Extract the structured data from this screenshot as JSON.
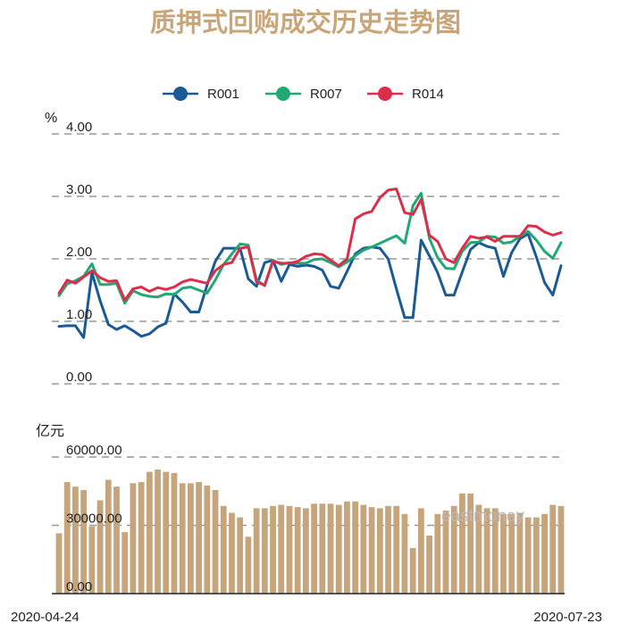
{
  "chart_data": {
    "title": "质押式回购成交历史走势图",
    "type": "line+bar",
    "x_start": "2020-04-24",
    "x_end": "2020-07-23",
    "watermark": "eastmoney",
    "colors": {
      "R001": "#1a5a96",
      "R007": "#22a873",
      "R014": "#dc2e4a",
      "bar": "#c7a57c",
      "title": "#c8a67a"
    },
    "rate_panel": {
      "unit": "%",
      "ylim": [
        0,
        4
      ],
      "ticks": [
        "0.00",
        "1.00",
        "2.00",
        "3.00",
        "4.00"
      ],
      "legend_position": "top-center",
      "series": [
        {
          "name": "R001",
          "values": [
            0.92,
            0.93,
            0.93,
            0.74,
            1.78,
            1.33,
            0.95,
            0.87,
            0.93,
            0.85,
            0.76,
            0.8,
            0.91,
            0.97,
            1.44,
            1.31,
            1.15,
            1.15,
            1.58,
            1.96,
            2.17,
            2.17,
            2.17,
            1.68,
            1.56,
            1.94,
            1.98,
            1.64,
            1.91,
            1.88,
            1.9,
            1.88,
            1.82,
            1.56,
            1.53,
            1.8,
            2.08,
            2.17,
            2.19,
            2.17,
            2.0,
            1.52,
            1.06,
            1.06,
            2.3,
            2.05,
            1.78,
            1.42,
            1.42,
            1.79,
            2.15,
            2.26,
            2.2,
            2.17,
            1.72,
            2.1,
            2.32,
            2.4,
            2.03,
            1.62,
            1.42,
            1.89
          ]
        },
        {
          "name": "R007",
          "values": [
            1.41,
            1.6,
            1.65,
            1.72,
            1.92,
            1.59,
            1.59,
            1.61,
            1.29,
            1.49,
            1.43,
            1.4,
            1.39,
            1.44,
            1.43,
            1.53,
            1.55,
            1.5,
            1.45,
            1.66,
            1.91,
            2.08,
            2.24,
            2.22,
            1.66,
            1.57,
            1.98,
            1.91,
            1.94,
            1.93,
            1.93,
            1.99,
            2.0,
            1.94,
            1.87,
            1.95,
            2.05,
            2.14,
            2.19,
            2.25,
            2.31,
            2.37,
            2.25,
            2.85,
            3.05,
            2.33,
            2.02,
            1.85,
            1.84,
            2.12,
            2.26,
            2.27,
            2.36,
            2.35,
            2.25,
            2.27,
            2.36,
            2.44,
            2.3,
            2.12,
            2.01,
            2.26
          ]
        },
        {
          "name": "R014",
          "values": [
            1.45,
            1.66,
            1.61,
            1.71,
            1.81,
            1.7,
            1.64,
            1.65,
            1.34,
            1.52,
            1.55,
            1.48,
            1.54,
            1.51,
            1.55,
            1.63,
            1.67,
            1.64,
            1.61,
            1.81,
            1.91,
            1.94,
            2.17,
            2.19,
            1.63,
            1.58,
            1.96,
            1.93,
            1.93,
            1.96,
            2.04,
            2.08,
            2.07,
            1.98,
            1.89,
            2.0,
            2.64,
            2.72,
            2.76,
            2.98,
            3.1,
            3.12,
            2.74,
            2.71,
            2.95,
            2.38,
            2.28,
            2.0,
            1.94,
            2.17,
            2.36,
            2.33,
            2.35,
            2.28,
            2.36,
            2.36,
            2.36,
            2.53,
            2.52,
            2.43,
            2.38,
            2.42
          ]
        }
      ]
    },
    "volume_panel": {
      "unit": "亿元",
      "ylim": [
        0,
        60000
      ],
      "ticks": [
        "0.00",
        "30000.00",
        "60000.00"
      ],
      "values": [
        26500,
        49000,
        47000,
        45500,
        29500,
        41000,
        50000,
        47000,
        27000,
        48500,
        49000,
        53500,
        54500,
        53500,
        53000,
        48500,
        48500,
        49000,
        47500,
        45500,
        38500,
        35500,
        33500,
        25000,
        37500,
        37500,
        38500,
        39000,
        38500,
        38000,
        37500,
        39500,
        39500,
        39500,
        39000,
        40500,
        40500,
        39000,
        38000,
        37500,
        38500,
        38500,
        35000,
        20000,
        37500,
        25500,
        35000,
        36500,
        38500,
        44000,
        44000,
        39000,
        37500,
        37500,
        35000,
        35000,
        35500,
        33500,
        33500,
        35000,
        39000,
        38500
      ]
    }
  }
}
